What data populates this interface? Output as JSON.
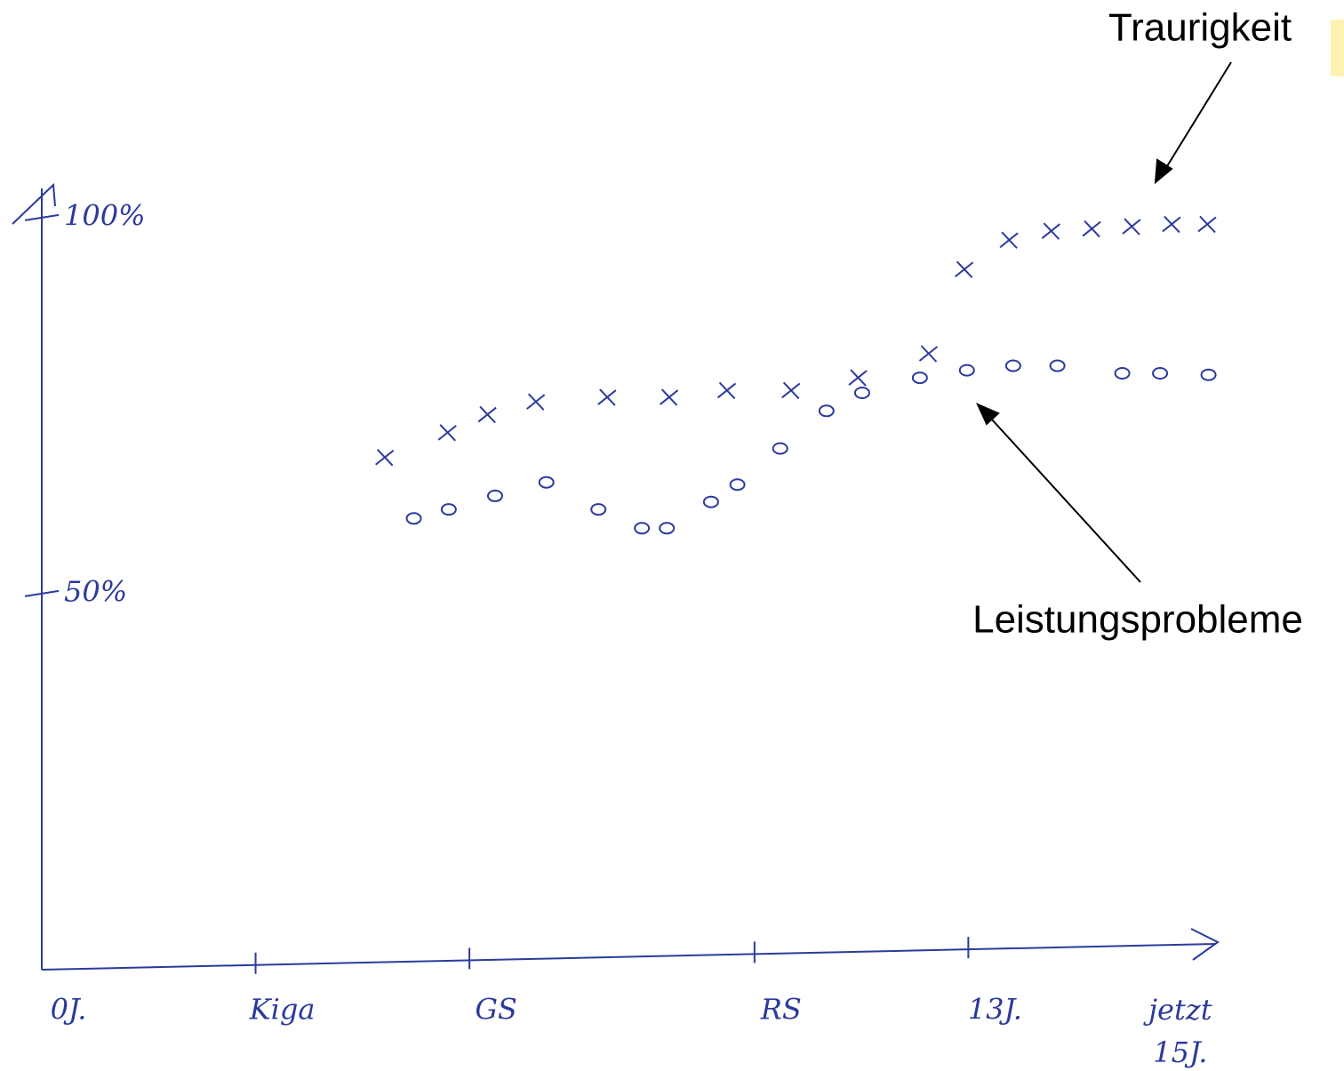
{
  "chart_data": {
    "type": "scatter",
    "xlim": [
      0,
      16.5
    ],
    "ylim": [
      0,
      104
    ],
    "xticks": [
      {
        "value": 0,
        "label": "0J."
      },
      {
        "value": 3,
        "label": "Kiga"
      },
      {
        "value": 6,
        "label": "GS"
      },
      {
        "value": 10,
        "label": "RS"
      },
      {
        "value": 13,
        "label": "13J."
      },
      {
        "value": 15.6,
        "label": "jetzt 15J."
      }
    ],
    "yticks": [
      {
        "value": 100,
        "label": "100%"
      },
      {
        "value": 50,
        "label": "50%"
      }
    ],
    "series": [
      {
        "name": "Traurigkeit",
        "color": "#2b3a9c",
        "marker": "x",
        "x": [
          4.81,
          5.69,
          6.25,
          6.93,
          7.93,
          8.8,
          9.61,
          10.51,
          11.45,
          12.44,
          12.94,
          13.57,
          14.16,
          14.73,
          15.29,
          15.85,
          16.35
        ],
        "values": [
          68.1,
          71.4,
          73.8,
          75.5,
          76.1,
          76.1,
          77.0,
          77.0,
          78.7,
          81.9,
          93.1,
          97.0,
          98.2,
          98.5,
          98.8,
          99.1,
          99.1
        ]
      },
      {
        "name": "Leistungsprobleme",
        "color": "#2b3a9c",
        "marker": "o",
        "x": [
          5.22,
          5.71,
          6.36,
          7.08,
          7.81,
          8.42,
          8.77,
          9.39,
          9.76,
          10.36,
          11.01,
          11.51,
          12.32,
          12.98,
          13.63,
          14.25,
          15.16,
          15.69,
          16.37
        ],
        "values": [
          60.0,
          61.2,
          63.0,
          64.8,
          61.2,
          58.7,
          58.7,
          62.2,
          64.5,
          69.3,
          74.3,
          76.7,
          78.7,
          79.7,
          80.3,
          80.3,
          79.3,
          79.3,
          79.1
        ]
      }
    ]
  }
}
